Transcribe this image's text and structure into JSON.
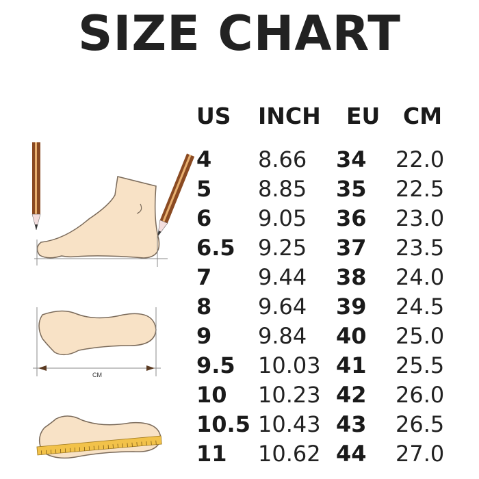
{
  "title": "SIZE CHART",
  "headers": [
    "US",
    "INCH",
    "EU",
    "CM"
  ],
  "rows": [
    {
      "us": "4",
      "inch": "8.66",
      "eu": "34",
      "cm": "22.0"
    },
    {
      "us": "5",
      "inch": "8.85",
      "eu": "35",
      "cm": "22.5"
    },
    {
      "us": "6",
      "inch": "9.05",
      "eu": "36",
      "cm": "23.0"
    },
    {
      "us": "6.5",
      "inch": "9.25",
      "eu": "37",
      "cm": "23.5"
    },
    {
      "us": "7",
      "inch": "9.44",
      "eu": "38",
      "cm": "24.0"
    },
    {
      "us": "8",
      "inch": "9.64",
      "eu": "39",
      "cm": "24.5"
    },
    {
      "us": "9",
      "inch": "9.84",
      "eu": "40",
      "cm": "25.0"
    },
    {
      "us": "9.5",
      "inch": "10.03",
      "eu": "41",
      "cm": "25.5"
    },
    {
      "us": "10",
      "inch": "10.23",
      "eu": "42",
      "cm": "26.0"
    },
    {
      "us": "10.5",
      "inch": "10.43",
      "eu": "43",
      "cm": "26.5"
    },
    {
      "us": "11",
      "inch": "10.62",
      "eu": "44",
      "cm": "27.0"
    }
  ],
  "illustration": {
    "measure_label": "CM",
    "colors": {
      "skin": "#f8e2c6",
      "outline": "#7a6a5a",
      "pencil": "#8a4a22",
      "ruler": "#f2c24a"
    }
  }
}
